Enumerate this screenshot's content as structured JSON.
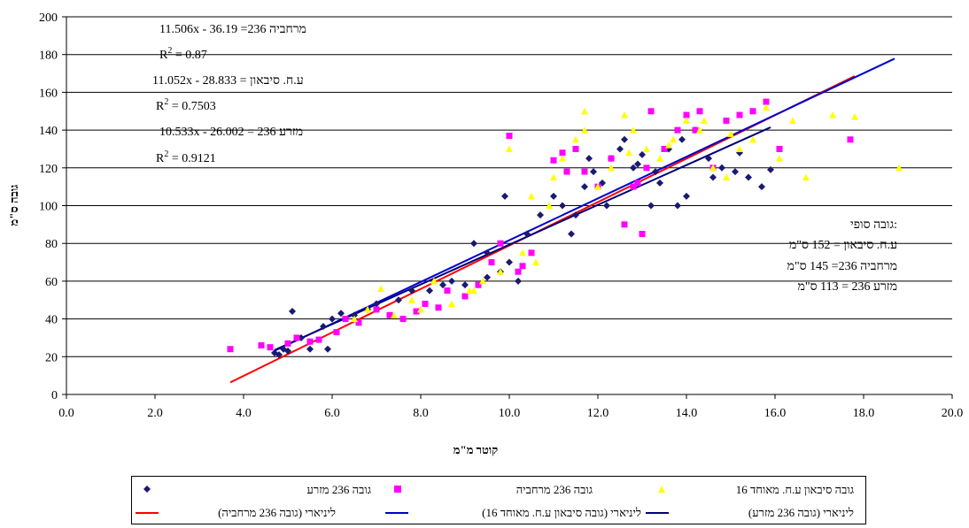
{
  "chart_data": {
    "type": "scatter",
    "xlabel": "קוטר מ\"מ",
    "ylabel": "גובה ס\"מ",
    "xlim": [
      0,
      20
    ],
    "ylim": [
      0,
      200
    ],
    "x_ticks": [
      "0.0",
      "2.0",
      "4.0",
      "6.0",
      "8.0",
      "10.0",
      "12.0",
      "14.0",
      "16.0",
      "18.0",
      "20.0"
    ],
    "y_ticks": [
      "0",
      "20",
      "40",
      "60",
      "80",
      "100",
      "120",
      "140",
      "160",
      "180",
      "200"
    ],
    "grid": "horizontal",
    "legend_position": "bottom",
    "annotations": {
      "eq1": "11.506x - 36.19 =236 מרחביה",
      "r2_1": "0.87",
      "eq2": "11.052x - 28.833 = ע.ח. סיבאון",
      "r2_2": "0.7503",
      "eq3": "10.533x - 26.002 = 236 מזרע",
      "r2_3": "0.9121",
      "r2_prefix": "R",
      "r2_sup": "2",
      "r2_eq": " = ",
      "final_title": "גובה סופי:",
      "final_1": "ע.ח. סיבאון = 152 ס\"מ",
      "final_2": "מרחביה 236= 145 ס\"מ",
      "final_3": "מזרע 236 = 113 ס\"מ"
    },
    "series": [
      {
        "name": "גובה 236 מזרע",
        "color": "#1a1a70",
        "marker": "diamond",
        "x": [
          4.7,
          4.8,
          4.9,
          5.0,
          5.1,
          5.3,
          5.5,
          5.8,
          5.9,
          6.0,
          6.2,
          6.5,
          6.8,
          7.0,
          7.5,
          7.8,
          8.2,
          8.5,
          8.7,
          9.0,
          9.2,
          9.5,
          9.8,
          9.9,
          10.2,
          10.4,
          10.7,
          11.0,
          11.2,
          11.5,
          11.7,
          11.9,
          12.1,
          12.3,
          12.5,
          12.8,
          13.0,
          13.3,
          13.6,
          13.9,
          14.2,
          14.5,
          14.8,
          15.1,
          15.4,
          15.7,
          15.9,
          12.2,
          12.6,
          13.4,
          14.0,
          11.4,
          10.0,
          9.5,
          13.8,
          14.6,
          15.2,
          12.9,
          11.8,
          13.2
        ],
        "y": [
          22,
          21,
          24,
          23,
          44,
          30,
          24,
          36,
          24,
          40,
          43,
          42,
          45,
          48,
          50,
          55,
          55,
          58,
          60,
          58,
          80,
          62,
          65,
          105,
          60,
          85,
          95,
          105,
          100,
          95,
          110,
          118,
          112,
          125,
          130,
          120,
          127,
          118,
          130,
          135,
          140,
          125,
          120,
          118,
          115,
          110,
          119,
          100,
          135,
          112,
          105,
          85,
          70,
          75,
          100,
          115,
          128,
          122,
          125,
          100
        ]
      },
      {
        "name": "גובה 236 מרחביה",
        "color": "#ff00ff",
        "marker": "square",
        "x": [
          3.7,
          4.4,
          4.6,
          5.0,
          5.2,
          5.5,
          5.7,
          6.1,
          6.3,
          6.6,
          7.0,
          7.3,
          7.6,
          7.9,
          8.1,
          8.4,
          8.6,
          9.0,
          9.3,
          9.6,
          9.8,
          10.0,
          10.3,
          10.5,
          11.0,
          11.2,
          11.5,
          11.7,
          12.0,
          12.3,
          12.6,
          12.8,
          13.0,
          13.2,
          13.5,
          13.8,
          14.0,
          14.3,
          14.6,
          14.9,
          15.2,
          15.5,
          15.8,
          16.1,
          17.7,
          13.1,
          14.2,
          12.9,
          11.3,
          10.2
        ],
        "y": [
          24,
          26,
          25,
          27,
          30,
          28,
          29,
          33,
          40,
          38,
          45,
          42,
          40,
          44,
          48,
          46,
          55,
          52,
          58,
          70,
          80,
          137,
          68,
          75,
          124,
          128,
          130,
          118,
          110,
          125,
          90,
          110,
          85,
          150,
          130,
          140,
          148,
          150,
          120,
          145,
          148,
          150,
          155,
          130,
          135,
          120,
          140,
          112,
          118,
          65
        ]
      },
      {
        "name": "גובה סיבאון ע.ח. מאוחד 16",
        "color": "#ffff00",
        "marker": "triangle",
        "x": [
          6.5,
          6.8,
          7.1,
          7.4,
          7.8,
          8.0,
          8.3,
          8.7,
          9.1,
          9.4,
          9.8,
          10.0,
          10.3,
          10.6,
          10.9,
          11.2,
          11.5,
          11.7,
          12.0,
          12.3,
          12.6,
          12.8,
          13.1,
          13.4,
          13.7,
          14.0,
          14.3,
          14.6,
          14.9,
          15.2,
          15.5,
          15.8,
          16.1,
          16.4,
          16.7,
          17.3,
          17.8,
          18.8,
          11.7,
          12.7,
          13.6,
          14.4,
          15.0,
          10.5,
          9.2,
          11.0
        ],
        "y": [
          40,
          45,
          56,
          42,
          50,
          45,
          60,
          48,
          55,
          60,
          65,
          130,
          75,
          70,
          100,
          125,
          135,
          150,
          110,
          120,
          148,
          140,
          130,
          125,
          135,
          145,
          140,
          120,
          115,
          130,
          135,
          152,
          125,
          145,
          115,
          148,
          147,
          120,
          140,
          128,
          132,
          145,
          138,
          105,
          55,
          115
        ]
      }
    ],
    "trendlines": [
      {
        "name": "ליניארי (גובה 236 מרחביה)",
        "color": "#ff0000",
        "slope": 11.506,
        "intercept": -36.19,
        "x_range": [
          3.7,
          17.8
        ]
      },
      {
        "name": "ליניארי (גובה סיבאון ע.ח. מאוחד 16)",
        "color": "#0000cc",
        "slope": 11.052,
        "intercept": -28.833,
        "x_range": [
          4.7,
          18.7
        ]
      },
      {
        "name": "ליניארי (גובה 236 מזרע)",
        "color": "#00007a",
        "slope": 10.533,
        "intercept": -26.002,
        "x_range": [
          4.7,
          15.9
        ]
      }
    ]
  }
}
